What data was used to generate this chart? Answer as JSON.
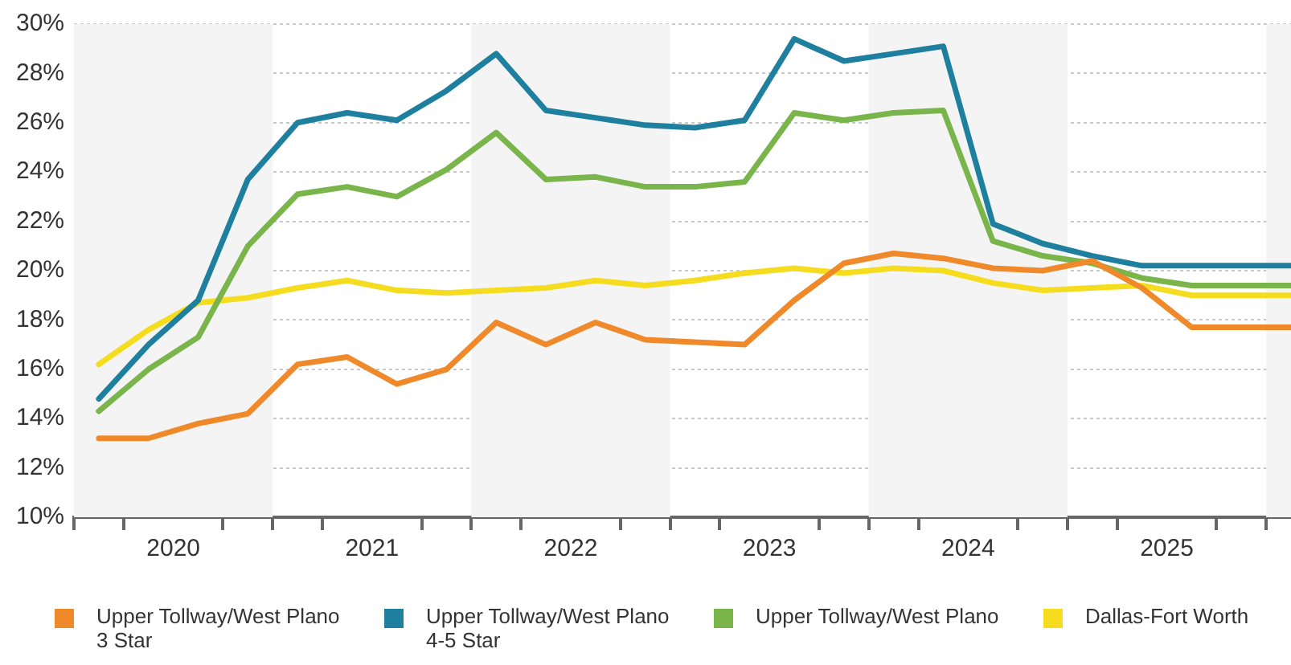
{
  "chart_data": {
    "type": "line",
    "x": [
      2020.125,
      2020.375,
      2020.625,
      2020.875,
      2021.125,
      2021.375,
      2021.625,
      2021.875,
      2022.125,
      2022.375,
      2022.625,
      2022.875,
      2023.125,
      2023.375,
      2023.625,
      2023.875,
      2024.125,
      2024.375,
      2024.625,
      2024.875,
      2025.125,
      2025.375,
      2025.625,
      2025.875,
      2026.125
    ],
    "series": [
      {
        "name": "Upper Tollway/West Plano 3 Star",
        "color": "#f0892a",
        "values": [
          13.2,
          13.2,
          13.8,
          14.2,
          16.2,
          16.5,
          15.4,
          16.0,
          17.9,
          17.0,
          17.9,
          17.2,
          17.1,
          17.0,
          18.8,
          20.3,
          20.7,
          20.5,
          20.1,
          20.0,
          20.4,
          19.3,
          17.7,
          17.7,
          17.7
        ]
      },
      {
        "name": "Upper Tollway/West Plano 4-5 Star",
        "color": "#1f7f9e",
        "values": [
          14.8,
          17.0,
          18.8,
          23.7,
          26.0,
          26.4,
          26.1,
          27.3,
          28.8,
          26.5,
          26.2,
          25.9,
          25.8,
          26.1,
          29.4,
          28.5,
          28.8,
          29.1,
          21.9,
          21.1,
          20.6,
          20.2,
          20.2,
          20.2,
          20.2
        ]
      },
      {
        "name": "Upper Tollway/West Plano",
        "color": "#79b54b",
        "values": [
          14.3,
          16.0,
          17.3,
          21.0,
          23.1,
          23.4,
          23.0,
          24.1,
          25.6,
          23.7,
          23.8,
          23.4,
          23.4,
          23.6,
          26.4,
          26.1,
          26.4,
          26.5,
          21.2,
          20.6,
          20.3,
          19.7,
          19.4,
          19.4,
          19.4
        ]
      },
      {
        "name": "Dallas-Fort Worth",
        "color": "#f5dc1f",
        "values": [
          16.2,
          17.6,
          18.7,
          18.9,
          19.3,
          19.6,
          19.2,
          19.1,
          19.2,
          19.3,
          19.6,
          19.4,
          19.6,
          19.9,
          20.1,
          19.9,
          20.1,
          20.0,
          19.5,
          19.2,
          19.3,
          19.4,
          19.0,
          19.0,
          19.0
        ]
      }
    ],
    "xlim": [
      2020,
      2026.125
    ],
    "xticks": [
      {
        "value": 2020,
        "label": null
      },
      {
        "value": 2020.25,
        "label": null
      },
      {
        "value": 2020.5,
        "label": "2020"
      },
      {
        "value": 2020.75,
        "label": null
      },
      {
        "value": 2021,
        "label": null
      },
      {
        "value": 2021.25,
        "label": null
      },
      {
        "value": 2021.5,
        "label": "2021"
      },
      {
        "value": 2021.75,
        "label": null
      },
      {
        "value": 2022,
        "label": null
      },
      {
        "value": 2022.25,
        "label": null
      },
      {
        "value": 2022.5,
        "label": "2022"
      },
      {
        "value": 2022.75,
        "label": null
      },
      {
        "value": 2023,
        "label": null
      },
      {
        "value": 2023.25,
        "label": null
      },
      {
        "value": 2023.5,
        "label": "2023"
      },
      {
        "value": 2023.75,
        "label": null
      },
      {
        "value": 2024,
        "label": null
      },
      {
        "value": 2024.25,
        "label": null
      },
      {
        "value": 2024.5,
        "label": "2024"
      },
      {
        "value": 2024.75,
        "label": null
      },
      {
        "value": 2025,
        "label": null
      },
      {
        "value": 2025.25,
        "label": null
      },
      {
        "value": 2025.5,
        "label": "2025"
      },
      {
        "value": 2025.75,
        "label": null
      },
      {
        "value": 2026,
        "label": null
      }
    ],
    "ylim": [
      10,
      30
    ],
    "yticks": [
      {
        "value": 10,
        "label": "10%"
      },
      {
        "value": 12,
        "label": "12%"
      },
      {
        "value": 14,
        "label": "14%"
      },
      {
        "value": 16,
        "label": "16%"
      },
      {
        "value": 18,
        "label": "18%"
      },
      {
        "value": 20,
        "label": "20%"
      },
      {
        "value": 22,
        "label": "22%"
      },
      {
        "value": 24,
        "label": "24%"
      },
      {
        "value": 26,
        "label": "26%"
      },
      {
        "value": 28,
        "label": "28%"
      },
      {
        "value": 30,
        "label": "30%"
      }
    ],
    "bands": [
      {
        "axis": "x",
        "from": 2020,
        "to": 2021,
        "color": "#f4f4f4"
      },
      {
        "axis": "x",
        "from": 2022,
        "to": 2023,
        "color": "#f4f4f4"
      },
      {
        "axis": "x",
        "from": 2024,
        "to": 2025,
        "color": "#f4f4f4"
      },
      {
        "axis": "x",
        "from": 2026,
        "to": 2026.125,
        "color": "#f4f4f4"
      }
    ],
    "grid": "y",
    "legend": "bottom",
    "marker": "none",
    "line_style": "solid"
  }
}
